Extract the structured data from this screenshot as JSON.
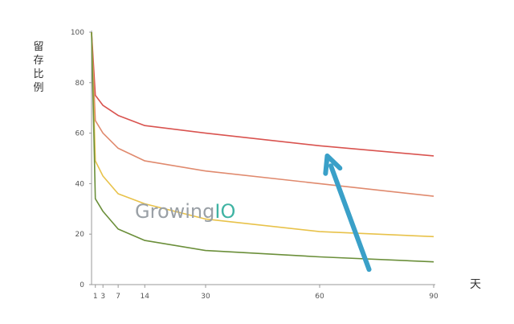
{
  "chart_data": {
    "type": "line",
    "ylabel": "留存比例",
    "xlabel": "天",
    "xlim": [
      0,
      90
    ],
    "ylim": [
      0,
      100
    ],
    "xticks": [
      1,
      3,
      7,
      14,
      30,
      60,
      90
    ],
    "yticks": [
      0,
      20,
      40,
      60,
      80,
      100
    ],
    "grid": false,
    "watermark": {
      "prefix": "Growing",
      "suffix": "IO"
    },
    "colors": {
      "accent": "#3aa0c8",
      "watermark_grey": "#9aa0a6",
      "watermark_teal": "#3fb3a3"
    },
    "series": [
      {
        "color": "#d9534f",
        "x": [
          0,
          1,
          3,
          7,
          14,
          30,
          60,
          90
        ],
        "y": [
          100,
          75,
          71,
          67,
          63,
          60,
          55,
          51
        ]
      },
      {
        "color": "#e08a6e",
        "x": [
          0,
          1,
          3,
          7,
          14,
          30,
          60,
          90
        ],
        "y": [
          100,
          65,
          60,
          54,
          49,
          45,
          40,
          35
        ]
      },
      {
        "color": "#e8c24a",
        "x": [
          0,
          1,
          3,
          7,
          14,
          30,
          60,
          90
        ],
        "y": [
          100,
          49,
          43,
          36,
          32,
          26,
          21,
          19
        ]
      },
      {
        "color": "#6b8f3a",
        "x": [
          0,
          1,
          3,
          7,
          14,
          30,
          60,
          90
        ],
        "y": [
          100,
          34,
          29,
          22,
          17.5,
          13.5,
          11,
          9
        ]
      }
    ],
    "annotations": [
      {
        "type": "arrow",
        "from": [
          73,
          6
        ],
        "to": [
          62,
          51
        ],
        "color": "#3aa0c8"
      }
    ]
  }
}
